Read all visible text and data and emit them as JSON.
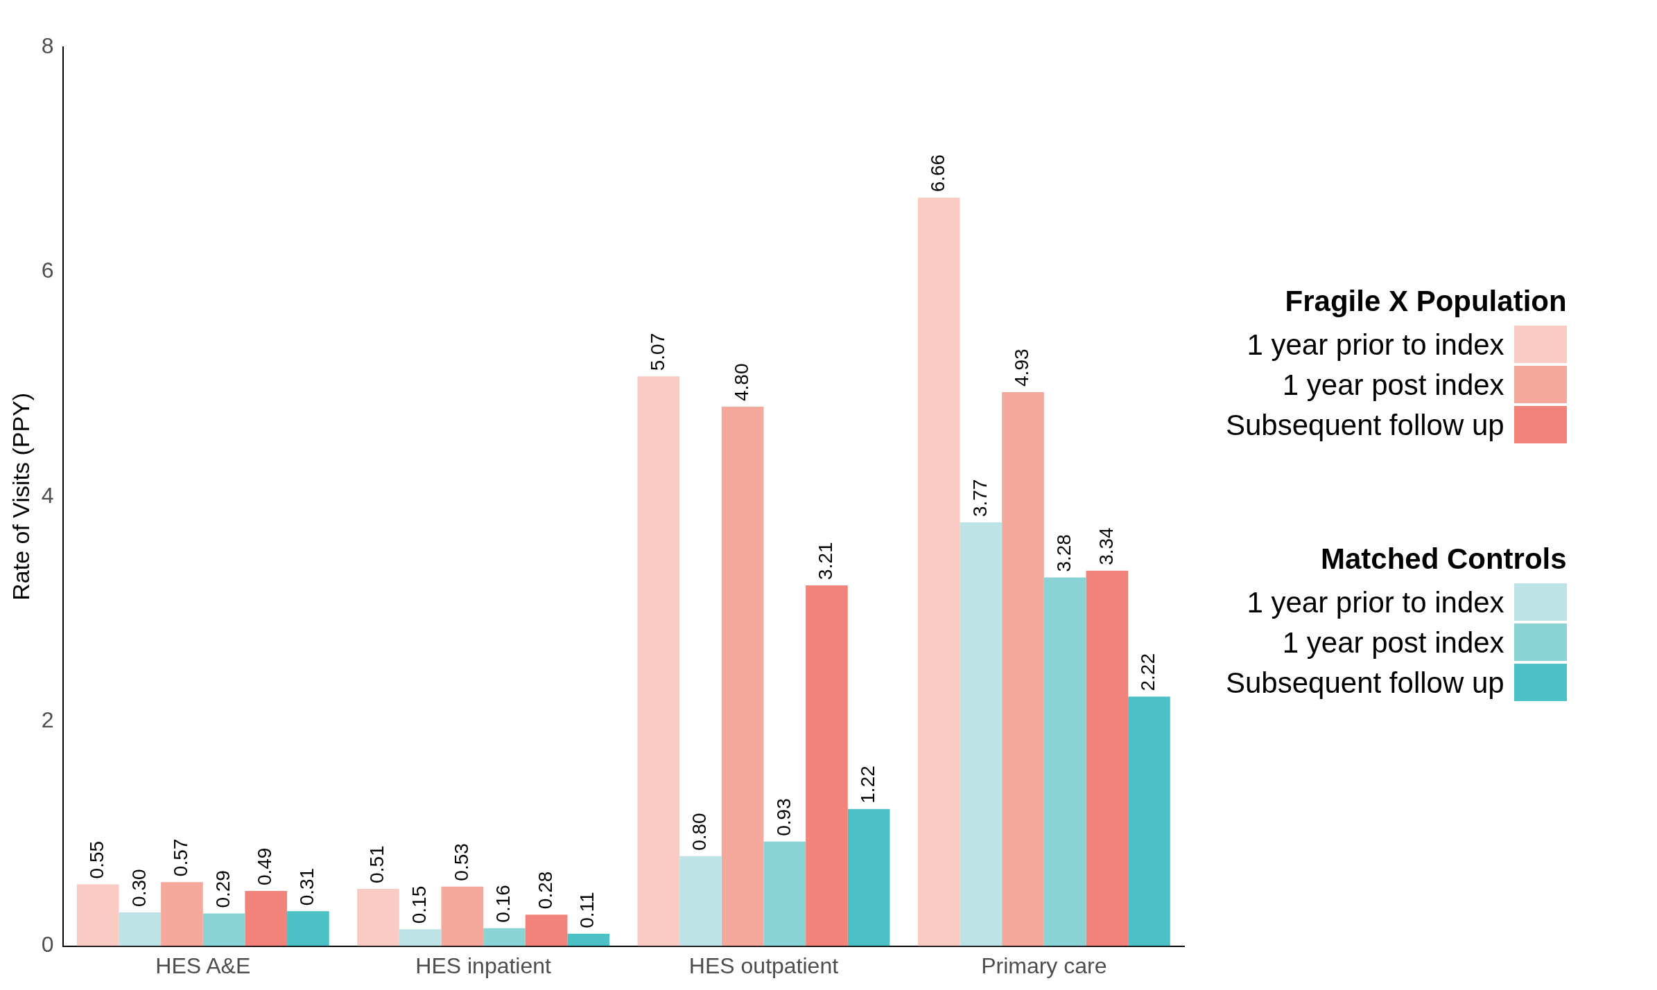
{
  "chart_data": {
    "type": "bar",
    "ylabel": "Rate of Visits (PPY)",
    "categories": [
      "HES A&E",
      "HES inpatient",
      "HES outpatient",
      "Primary care"
    ],
    "series": [
      {
        "name": "1 year prior to index",
        "color": "#f9cbc2",
        "values": [
          0.55,
          0.51,
          5.07,
          6.66
        ],
        "value_labels": [
          "0.55",
          "0.51",
          "5.07",
          "6.66"
        ]
      },
      {
        "name": "1 year prior to index",
        "color": "#bde3e6",
        "values": [
          0.3,
          0.15,
          0.8,
          3.77
        ],
        "value_labels": [
          "0.30",
          "0.15",
          "0.80",
          "3.77"
        ]
      },
      {
        "name": "1 year post index",
        "color": "#f5a89c",
        "values": [
          0.57,
          0.53,
          4.8,
          4.93
        ],
        "value_labels": [
          "0.57",
          "0.53",
          "4.80",
          "4.93"
        ]
      },
      {
        "name": "1 year post index",
        "color": "#8ad4d6",
        "values": [
          0.29,
          0.16,
          0.93,
          3.28
        ],
        "value_labels": [
          "0.29",
          "0.16",
          "0.93",
          "3.28"
        ]
      },
      {
        "name": "Subsequent follow up",
        "color": "#f2837a",
        "values": [
          0.49,
          0.28,
          3.21,
          3.34
        ],
        "value_labels": [
          "0.49",
          "0.28",
          "3.21",
          "3.34"
        ]
      },
      {
        "name": "Subsequent follow up",
        "color": "#4bc1c5",
        "values": [
          0.31,
          0.11,
          1.22,
          2.22
        ],
        "value_labels": [
          "0.31",
          "0.11",
          "1.22",
          "2.22"
        ]
      }
    ],
    "legend_title": [
      "Fragile X Population",
      "Matched Controls"
    ],
    "ylim": [
      0,
      8
    ],
    "yticks": [
      0,
      2,
      4,
      6,
      8
    ],
    "grid": false,
    "legend": "right"
  }
}
